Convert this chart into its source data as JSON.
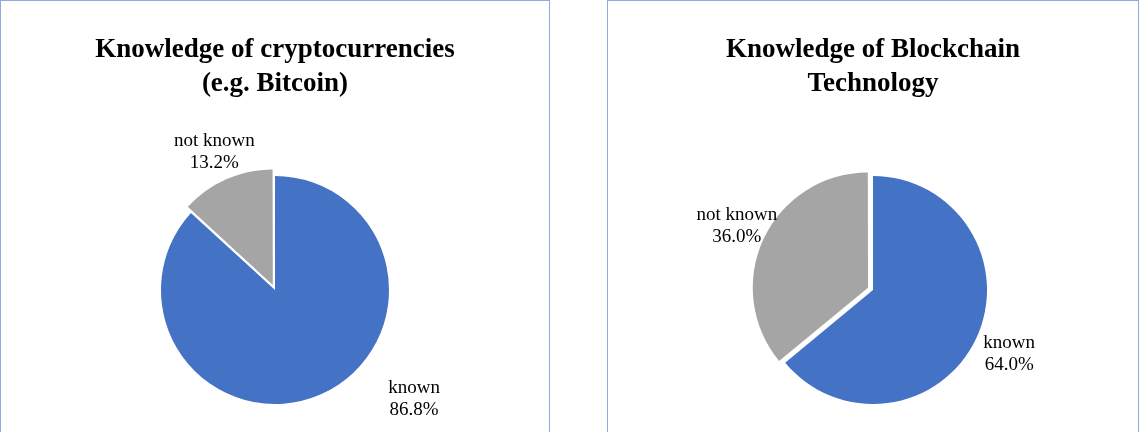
{
  "chart_data": [
    {
      "type": "pie",
      "title": "Knowledge of cryptocurrencies (e.g. Bitcoin)",
      "categories": [
        "known",
        "not known"
      ],
      "values": [
        86.8,
        13.2
      ],
      "colors": [
        "#4472c4",
        "#a5a5a5"
      ],
      "value_labels": [
        "86.8%",
        "13.2%"
      ]
    },
    {
      "type": "pie",
      "title": "Knowledge of Blockchain Technology",
      "categories": [
        "known",
        "not known"
      ],
      "values": [
        64.0,
        36.0
      ],
      "colors": [
        "#4472c4",
        "#a5a5a5"
      ],
      "value_labels": [
        "64.0%",
        "36.0%"
      ]
    }
  ]
}
